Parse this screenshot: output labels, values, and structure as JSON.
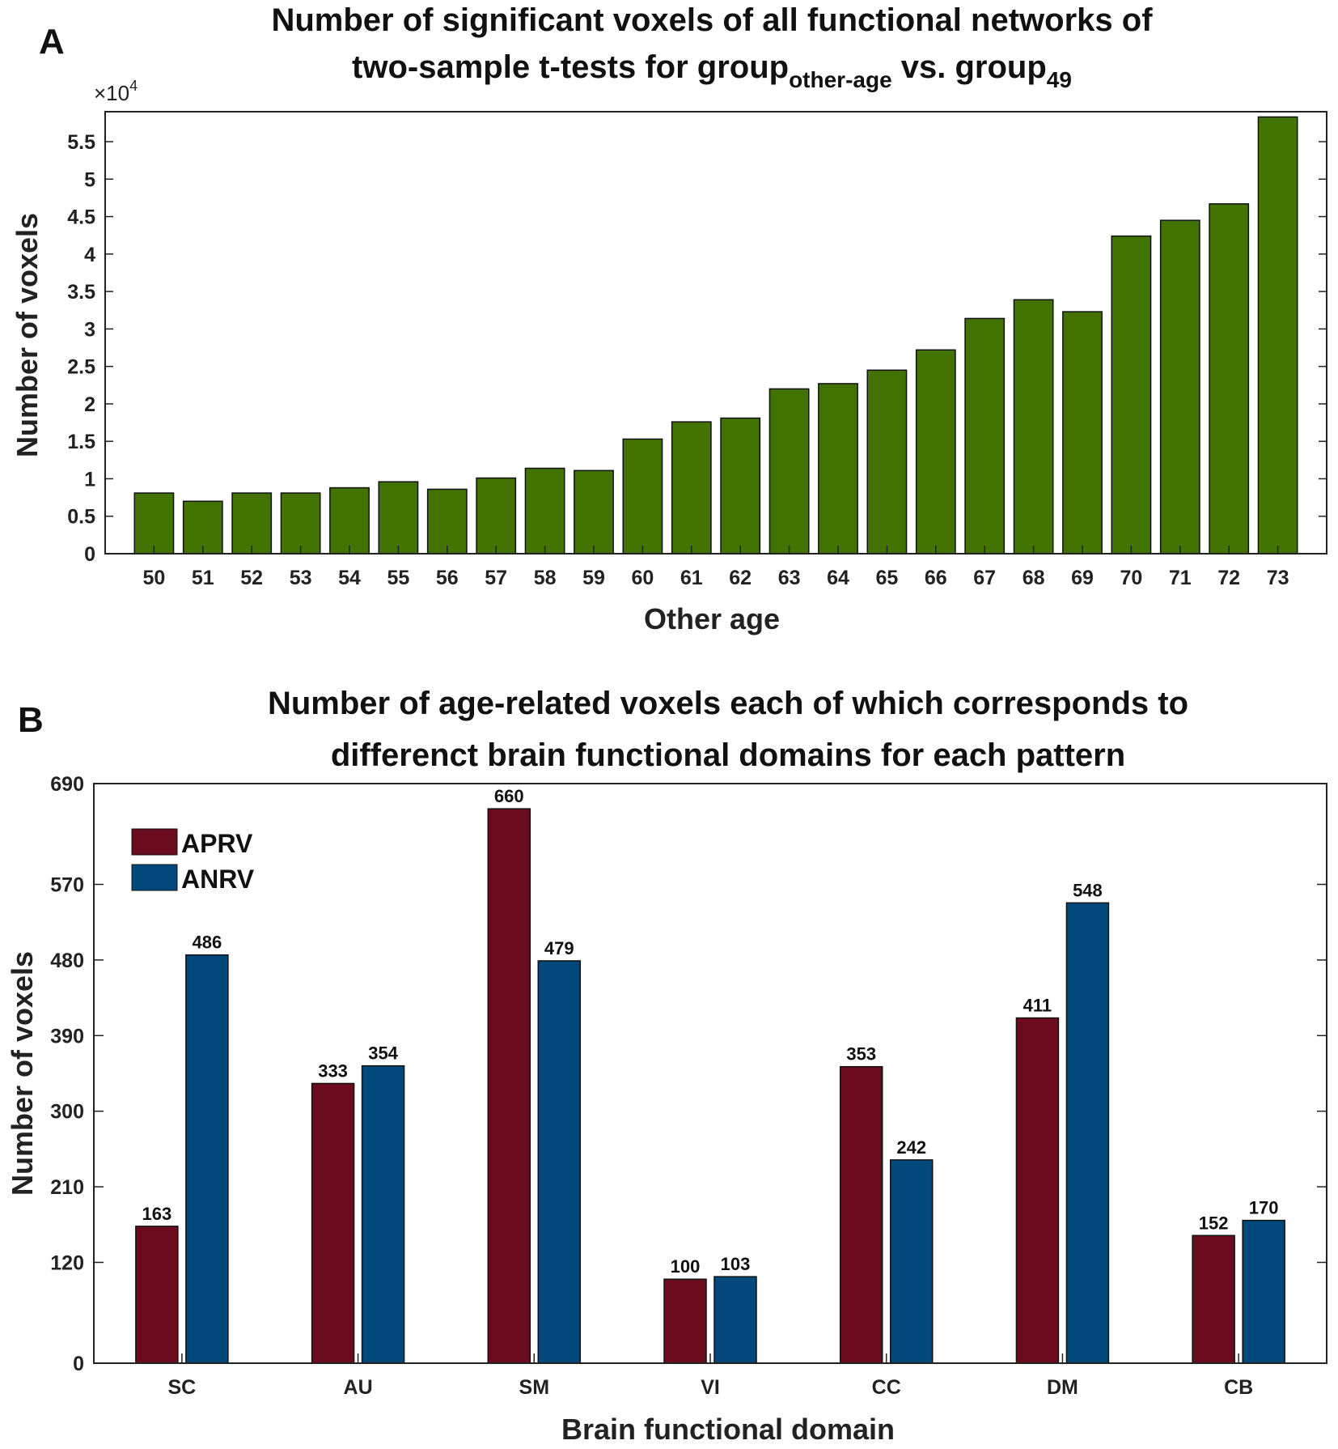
{
  "chart_data": [
    {
      "panel": "A",
      "type": "bar",
      "title_line1": "Number of significant voxels of all functional networks of",
      "title_line2_prefix": "two-sample t-tests for  group",
      "title_sub1": "other-age",
      "title_mid": " vs. group",
      "title_sub2": "49",
      "exponent_base": "×10",
      "exponent_power": "4",
      "xlabel": "Other age",
      "ylabel": "Number of voxels",
      "ylim": [
        0,
        5.9
      ],
      "yticks": [
        0,
        0.5,
        1,
        1.5,
        2,
        2.5,
        3,
        3.5,
        4,
        4.5,
        5,
        5.5
      ],
      "ytick_labels": [
        "0",
        "0.5",
        "1",
        "1.5",
        "2",
        "2.5",
        "3",
        "3.5",
        "4",
        "4.5",
        "5",
        "5.5"
      ],
      "categories": [
        "50",
        "51",
        "52",
        "53",
        "54",
        "55",
        "56",
        "57",
        "58",
        "59",
        "60",
        "61",
        "62",
        "63",
        "64",
        "65",
        "66",
        "67",
        "68",
        "69",
        "70",
        "71",
        "72",
        "73"
      ],
      "values": [
        0.81,
        0.7,
        0.81,
        0.81,
        0.88,
        0.96,
        0.86,
        1.01,
        1.14,
        1.11,
        1.53,
        1.76,
        1.81,
        2.2,
        2.27,
        2.45,
        2.72,
        3.14,
        3.39,
        3.23,
        4.24,
        4.45,
        4.67,
        5.83
      ],
      "color": "#427302"
    },
    {
      "panel": "B",
      "type": "bar",
      "title_line1": "Number of age-related voxels each of which corresponds to",
      "title_line2": "differenct brain functional domains for each pattern",
      "xlabel": "Brain functional domain",
      "ylabel": "Number of voxels",
      "ylim": [
        0,
        690
      ],
      "yticks": [
        0,
        120,
        210,
        300,
        390,
        480,
        570,
        690
      ],
      "ytick_labels": [
        "0",
        "120",
        "210",
        "300",
        "390",
        "480",
        "570",
        "690"
      ],
      "categories": [
        "SC",
        "AU",
        "SM",
        "VI",
        "CC",
        "DM",
        "CB"
      ],
      "series": [
        {
          "name": "APRV",
          "color": "#6a0c1e",
          "values": [
            163,
            333,
            660,
            100,
            353,
            411,
            152
          ]
        },
        {
          "name": "ANRV",
          "color": "#00497a",
          "values": [
            486,
            354,
            479,
            103,
            242,
            548,
            170
          ]
        }
      ],
      "legend": "top-left"
    }
  ]
}
